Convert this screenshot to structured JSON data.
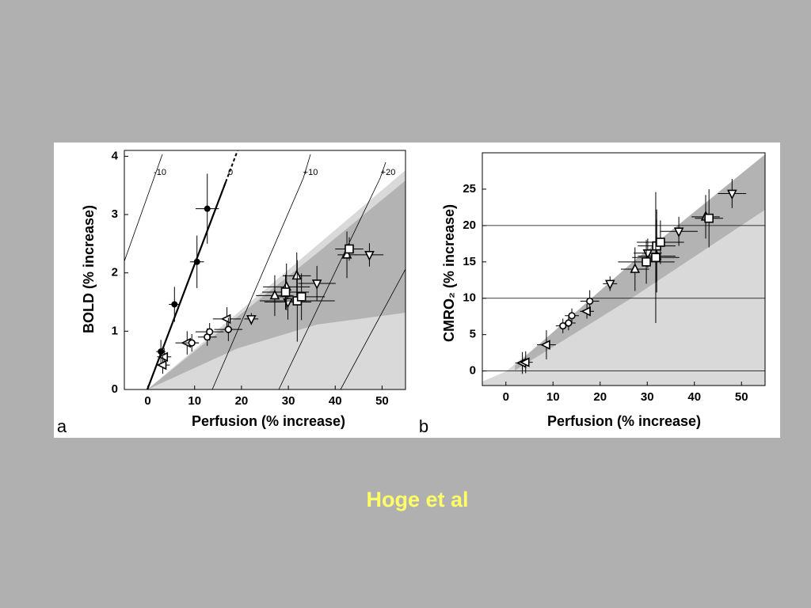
{
  "caption": "Hoge et al",
  "chart_data": [
    {
      "type": "scatter",
      "panel_label": "a",
      "xlabel": "Perfusion (% increase)",
      "ylabel": "BOLD (% increase)",
      "isoline_labels": [
        "-10",
        "0",
        "+10",
        "+20"
      ],
      "xlim": [
        -5,
        55
      ],
      "ylim": [
        0,
        4.1
      ],
      "xticks": [
        0,
        10,
        20,
        30,
        40,
        50
      ],
      "yticks": [
        0,
        1,
        2,
        3,
        4
      ],
      "series": [
        {
          "marker": "filled-circle",
          "color": "#000",
          "x": [
            12.7,
            10.5,
            5.7,
            2.8
          ],
          "values": [
            3.1,
            2.19,
            1.46,
            0.65
          ],
          "xerr": [
            2.5,
            1.5,
            1.2,
            1.0
          ],
          "yerr": [
            0.6,
            0.45,
            0.3,
            0.2
          ]
        },
        {
          "marker": "left-triangle",
          "color": "#000",
          "x": [
            3.5,
            3.2,
            8.4,
            16.9
          ],
          "values": [
            0.56,
            0.42,
            0.8,
            1.21
          ],
          "xerr": [
            1.5,
            1.5,
            2.5,
            3
          ],
          "yerr": [
            0.15,
            0.15,
            0.2,
            0.2
          ]
        },
        {
          "marker": "circle",
          "color": "#000",
          "x": [
            9.4,
            12.7,
            13.2,
            17.2
          ],
          "values": [
            0.8,
            0.9,
            0.99,
            1.03
          ],
          "xerr": [
            1.5,
            2,
            3,
            3
          ],
          "yerr": [
            0.15,
            0.15,
            0.15,
            0.2
          ]
        },
        {
          "marker": "down-triangle",
          "color": "#000",
          "x": [
            22.1,
            29.9,
            36.1,
            47.3
          ],
          "values": [
            1.21,
            1.5,
            1.82,
            2.31
          ],
          "xerr": [
            1.5,
            5,
            4,
            3
          ],
          "yerr": [
            0.1,
            0.3,
            0.3,
            0.2
          ]
        },
        {
          "marker": "up-triangle",
          "color": "#000",
          "x": [
            27.1,
            29.6,
            31.8,
            42.5
          ],
          "values": [
            1.61,
            1.76,
            1.95,
            2.31
          ],
          "xerr": [
            4,
            5,
            3,
            2
          ],
          "yerr": [
            0.35,
            0.4,
            0.4,
            0.4
          ]
        },
        {
          "marker": "square",
          "color": "#000",
          "x": [
            29.4,
            31.9,
            32.8,
            43.0
          ],
          "values": [
            1.67,
            1.52,
            1.59,
            2.41
          ],
          "xerr": [
            5,
            8,
            5,
            3
          ],
          "yerr": [
            0.3,
            0.7,
            0.4,
            0.2
          ]
        }
      ]
    },
    {
      "type": "scatter",
      "panel_label": "b",
      "xlabel": "Perfusion (% increase)",
      "ylabel": "CMRO₂ (% increase)",
      "xlim": [
        -5,
        55
      ],
      "ylim": [
        -2,
        30
      ],
      "xticks": [
        0,
        10,
        20,
        30,
        40,
        50
      ],
      "yticks": [
        0,
        5,
        10,
        15,
        20,
        25
      ],
      "hlines": [
        0,
        10,
        20
      ],
      "series": [
        {
          "marker": "left-triangle",
          "color": "#000",
          "x": [
            3.5,
            4.2,
            8.6,
            17.2
          ],
          "values": [
            1.1,
            1.2,
            3.6,
            8.2
          ],
          "xerr": [
            1.5,
            1.5,
            2,
            1.5
          ],
          "yerr": [
            1.5,
            1.5,
            2,
            1
          ]
        },
        {
          "marker": "circle",
          "color": "#000",
          "x": [
            12.1,
            13.3,
            14.0,
            17.8
          ],
          "values": [
            6.2,
            6.6,
            7.6,
            9.6
          ],
          "xerr": [
            1.5,
            1.5,
            1.5,
            2
          ],
          "yerr": [
            1,
            1,
            1,
            1.5
          ]
        },
        {
          "marker": "down-triangle",
          "color": "#000",
          "x": [
            22.1,
            30.1,
            36.7,
            48.0
          ],
          "values": [
            12.0,
            16.2,
            19.2,
            24.4
          ],
          "xerr": [
            1.5,
            3,
            4,
            3
          ],
          "yerr": [
            1,
            2,
            2,
            2
          ]
        },
        {
          "marker": "up-triangle",
          "color": "#000",
          "x": [
            27.4,
            32.0,
            42.4
          ],
          "values": [
            14.0,
            15.8,
            21.2
          ],
          "xerr": [
            3,
            4,
            3
          ],
          "yerr": [
            3,
            5,
            3
          ]
        },
        {
          "marker": "square",
          "color": "#000",
          "x": [
            29.8,
            32.0,
            32.8,
            43.1,
            31.8
          ],
          "values": [
            15.0,
            17.2,
            17.7,
            21.0,
            15.6
          ],
          "xerr": [
            6,
            4,
            5,
            3,
            5
          ],
          "yerr": [
            3,
            5,
            3,
            4,
            9
          ]
        }
      ]
    }
  ]
}
